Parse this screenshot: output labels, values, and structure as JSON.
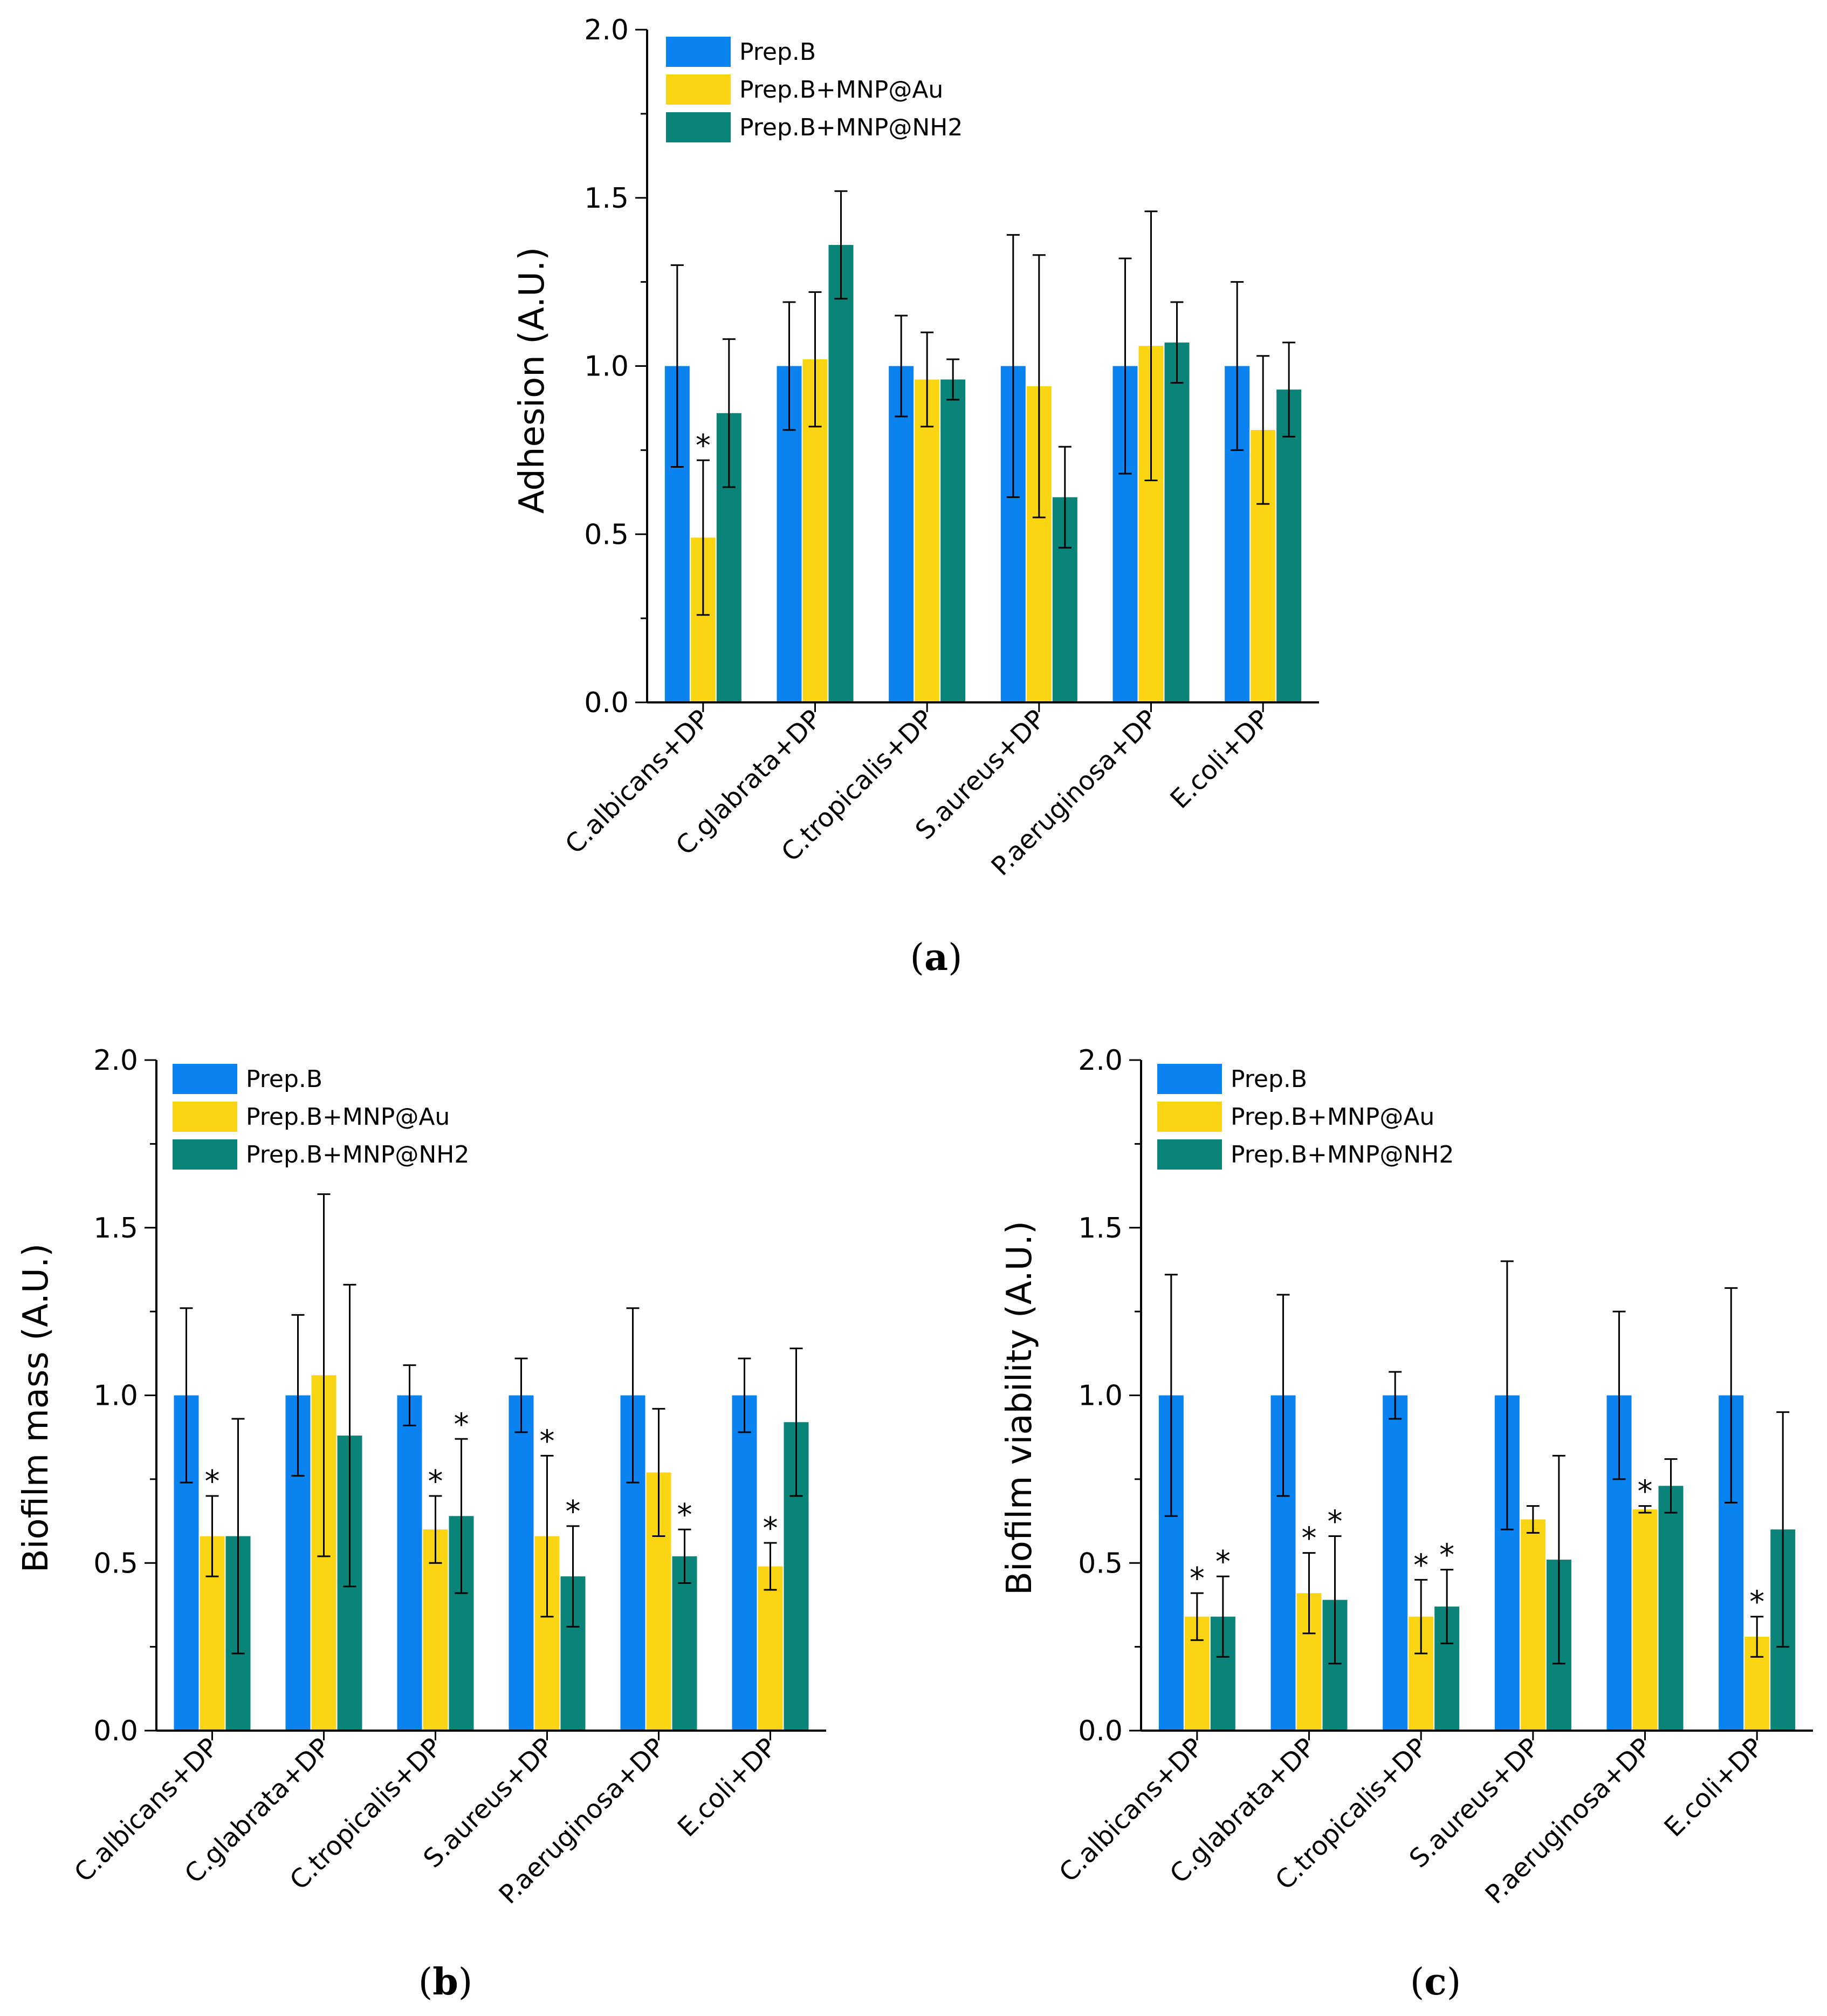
{
  "chart_data": [
    {
      "type": "bar",
      "panel_label": "a",
      "ylabel": "Adhesion (A.U.)",
      "ylim": [
        0,
        2.0
      ],
      "yticks": [
        "0.0",
        "0.5",
        "1.0",
        "1.5",
        "2.0"
      ],
      "legend_position": "top-left",
      "categories": [
        "C.albicans+DP",
        "C.glabrata+DP",
        "C.tropicalis+DP",
        "S.aureus+DP",
        "P.aeruginosa+DP",
        "E.coli+DP"
      ],
      "series": [
        {
          "name": "Prep.B",
          "color": "#0a82f0",
          "values": [
            1.0,
            1.0,
            1.0,
            1.0,
            1.0,
            1.0
          ],
          "errors": [
            0.3,
            0.19,
            0.15,
            0.39,
            0.32,
            0.25
          ],
          "significant": [
            false,
            false,
            false,
            false,
            false,
            false
          ]
        },
        {
          "name": "Prep.B+MNP@Au",
          "color": "#fad514",
          "values": [
            0.49,
            1.02,
            0.96,
            0.94,
            1.06,
            0.81
          ],
          "errors": [
            0.23,
            0.2,
            0.14,
            0.39,
            0.4,
            0.22
          ],
          "significant": [
            true,
            false,
            false,
            false,
            false,
            false
          ]
        },
        {
          "name": "Prep.B+MNP@NH2",
          "color": "#0a8478",
          "values": [
            0.86,
            1.36,
            0.96,
            0.61,
            1.07,
            0.93
          ],
          "errors": [
            0.22,
            0.16,
            0.06,
            0.15,
            0.12,
            0.14
          ],
          "significant": [
            false,
            false,
            false,
            false,
            false,
            false
          ]
        }
      ]
    },
    {
      "type": "bar",
      "panel_label": "b",
      "ylabel": "Biofilm mass (A.U.)",
      "ylim": [
        0,
        2.0
      ],
      "yticks": [
        "0.0",
        "0.5",
        "1.0",
        "1.5",
        "2.0"
      ],
      "legend_position": "top-left",
      "categories": [
        "C.albicans+DP",
        "C.glabrata+DP",
        "C.tropicalis+DP",
        "S.aureus+DP",
        "P.aeruginosa+DP",
        "E.coli+DP"
      ],
      "series": [
        {
          "name": "Prep.B",
          "color": "#0a82f0",
          "values": [
            1.0,
            1.0,
            1.0,
            1.0,
            1.0,
            1.0
          ],
          "errors": [
            0.26,
            0.24,
            0.09,
            0.11,
            0.26,
            0.11
          ],
          "significant": [
            false,
            false,
            false,
            false,
            false,
            false
          ]
        },
        {
          "name": "Prep.B+MNP@Au",
          "color": "#fad514",
          "values": [
            0.58,
            1.06,
            0.6,
            0.58,
            0.77,
            0.49
          ],
          "errors": [
            0.12,
            0.54,
            0.1,
            0.24,
            0.19,
            0.07
          ],
          "significant": [
            true,
            false,
            true,
            true,
            false,
            true
          ]
        },
        {
          "name": "Prep.B+MNP@NH2",
          "color": "#0a8478",
          "values": [
            0.58,
            0.88,
            0.64,
            0.46,
            0.52,
            0.92
          ],
          "errors": [
            0.35,
            0.45,
            0.23,
            0.15,
            0.08,
            0.22
          ],
          "significant": [
            false,
            false,
            true,
            true,
            true,
            false
          ]
        }
      ]
    },
    {
      "type": "bar",
      "panel_label": "c",
      "ylabel": "Biofilm viability (A.U.)",
      "ylim": [
        0,
        2.0
      ],
      "yticks": [
        "0.0",
        "0.5",
        "1.0",
        "1.5",
        "2.0"
      ],
      "legend_position": "top-left",
      "categories": [
        "C.albicans+DP",
        "C.glabrata+DP",
        "C.tropicalis+DP",
        "S.aureus+DP",
        "P.aeruginosa+DP",
        "E.coli+DP"
      ],
      "series": [
        {
          "name": "Prep.B",
          "color": "#0a82f0",
          "values": [
            1.0,
            1.0,
            1.0,
            1.0,
            1.0,
            1.0
          ],
          "errors": [
            0.36,
            0.3,
            0.07,
            0.4,
            0.25,
            0.32
          ],
          "significant": [
            false,
            false,
            false,
            false,
            false,
            false
          ]
        },
        {
          "name": "Prep.B+MNP@Au",
          "color": "#fad514",
          "values": [
            0.34,
            0.41,
            0.34,
            0.63,
            0.66,
            0.28
          ],
          "errors": [
            0.07,
            0.12,
            0.11,
            0.04,
            0.01,
            0.06
          ],
          "significant": [
            true,
            true,
            true,
            false,
            true,
            true
          ]
        },
        {
          "name": "Prep.B+MNP@NH2",
          "color": "#0a8478",
          "values": [
            0.34,
            0.39,
            0.37,
            0.51,
            0.73,
            0.6
          ],
          "errors": [
            0.12,
            0.19,
            0.11,
            0.31,
            0.08,
            0.35
          ],
          "significant": [
            true,
            true,
            true,
            false,
            false,
            false
          ]
        }
      ]
    }
  ],
  "significance_marker": "*"
}
